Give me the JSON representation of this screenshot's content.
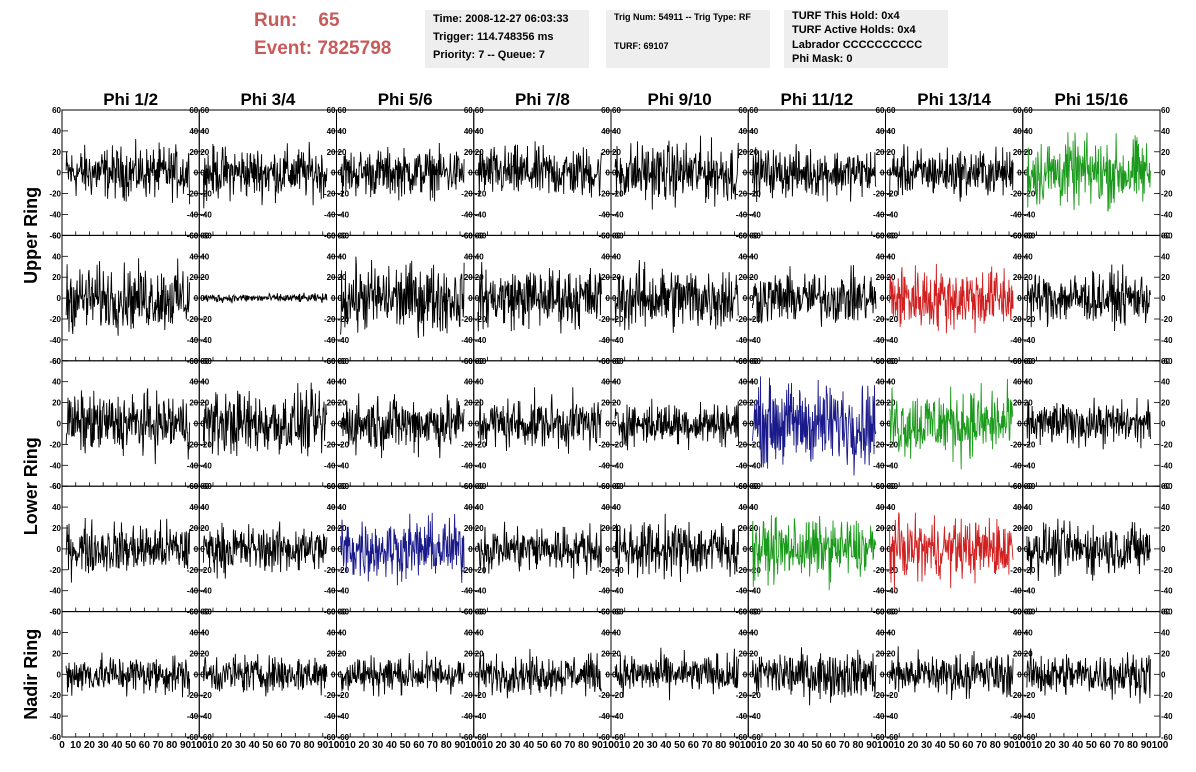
{
  "header": {
    "run_label": "Run:",
    "run_value": "65",
    "event_label": "Event:",
    "event_value": "7825798",
    "time": "Time: 2008-12-27 06:03:33",
    "trigger": "Trigger: 114.748356 ms",
    "priority": "Priority: 7 -- Queue: 7",
    "trig_num": "Trig Num: 54911 -- Trig Type: RF",
    "turf": "TURF: 69107",
    "turf_this_hold": "TURF This Hold: 0x4",
    "turf_active_holds": "TURF Active Holds: 0x4",
    "labrador": "Labrador CCCCCCCCCC",
    "phi_mask": "Phi Mask: 0"
  },
  "chart_data": {
    "type": "line",
    "columns": [
      "Phi 1/2",
      "Phi 3/4",
      "Phi 5/6",
      "Phi 7/8",
      "Phi 9/10",
      "Phi 11/12",
      "Phi 13/14",
      "Phi 15/16"
    ],
    "row_labels": [
      {
        "name": "Upper Ring",
        "rows": [
          0,
          1
        ]
      },
      {
        "name": "Lower Ring",
        "rows": [
          2,
          3
        ]
      },
      {
        "name": "Nadir Ring",
        "rows": [
          4
        ]
      }
    ],
    "ylim": [
      -60,
      60
    ],
    "xlim": [
      0,
      100
    ],
    "yticks": [
      -60,
      -40,
      -20,
      0,
      20,
      40,
      60
    ],
    "xticks": [
      0,
      10,
      20,
      30,
      40,
      50,
      60,
      70,
      80,
      90,
      100
    ],
    "samples_per_trace": 260,
    "trace_colors": [
      [
        "#000000",
        "#000000",
        "#000000",
        "#000000",
        "#000000",
        "#000000",
        "#000000",
        "#1a9a1a"
      ],
      [
        "#000000",
        "#000000",
        "#000000",
        "#000000",
        "#000000",
        "#000000",
        "#d02020",
        "#000000"
      ],
      [
        "#000000",
        "#000000",
        "#000000",
        "#000000",
        "#000000",
        "#1a1a8a",
        "#1a9a1a",
        "#000000"
      ],
      [
        "#000000",
        "#000000",
        "#1a1a8a",
        "#000000",
        "#000000",
        "#1a9a1a",
        "#d02020",
        "#000000"
      ],
      [
        "#000000",
        "#000000",
        "#000000",
        "#000000",
        "#000000",
        "#000000",
        "#000000",
        "#000000"
      ]
    ],
    "trace_amplitude": [
      [
        12,
        12,
        11,
        12,
        14,
        11,
        11,
        16
      ],
      [
        15,
        2,
        16,
        14,
        15,
        12,
        15,
        12
      ],
      [
        14,
        15,
        13,
        12,
        10,
        19,
        16,
        10
      ],
      [
        12,
        11,
        14,
        11,
        13,
        14,
        14,
        12
      ],
      [
        9,
        9,
        9,
        9,
        9,
        11,
        10,
        10
      ]
    ]
  }
}
